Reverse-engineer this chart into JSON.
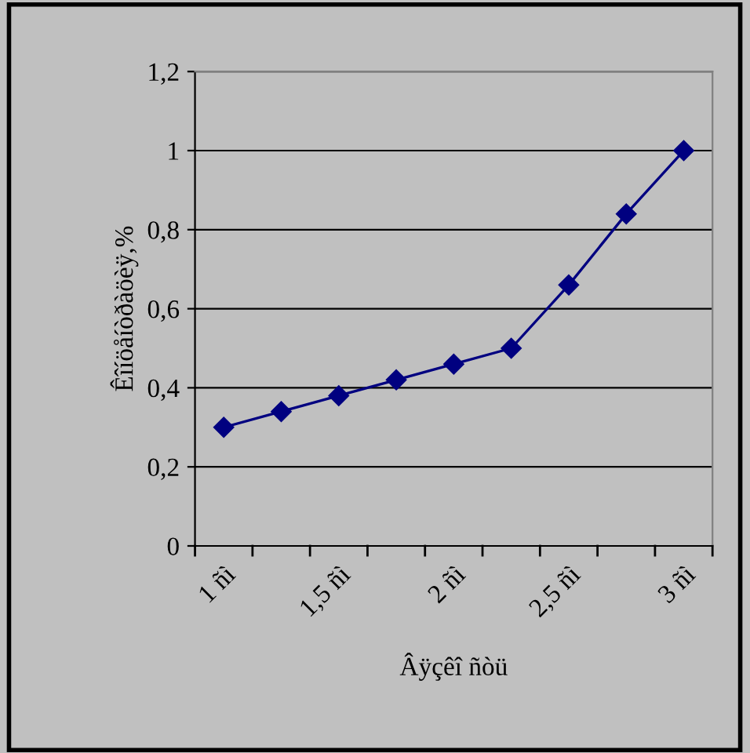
{
  "chart_data": {
    "type": "line",
    "xlabel": "Âÿçêî ñòü",
    "ylabel": "Êîíöåíòðàöèÿ,%",
    "categories": [
      "1 ñì",
      null,
      "1,5 ñì",
      null,
      "2 ñì",
      null,
      "2,5 ñì",
      null,
      "3 ñì"
    ],
    "series": [
      {
        "color": "#000080",
        "values": [
          0.3,
          0.34,
          0.38,
          0.42,
          0.46,
          0.5,
          0.66,
          0.84,
          1.0
        ]
      }
    ],
    "ylim": [
      0,
      1.2
    ],
    "yticks": [
      {
        "value": 0,
        "label": "0"
      },
      {
        "value": 0.2,
        "label": "0,2"
      },
      {
        "value": 0.4,
        "label": "0,4"
      },
      {
        "value": 0.6,
        "label": "0,6"
      },
      {
        "value": 0.8,
        "label": "0,8"
      },
      {
        "value": 1,
        "label": "1"
      },
      {
        "value": 1.2,
        "label": "1,2"
      }
    ],
    "grid": "y",
    "marker": "diamond",
    "line_style": "solid",
    "legend": false
  }
}
